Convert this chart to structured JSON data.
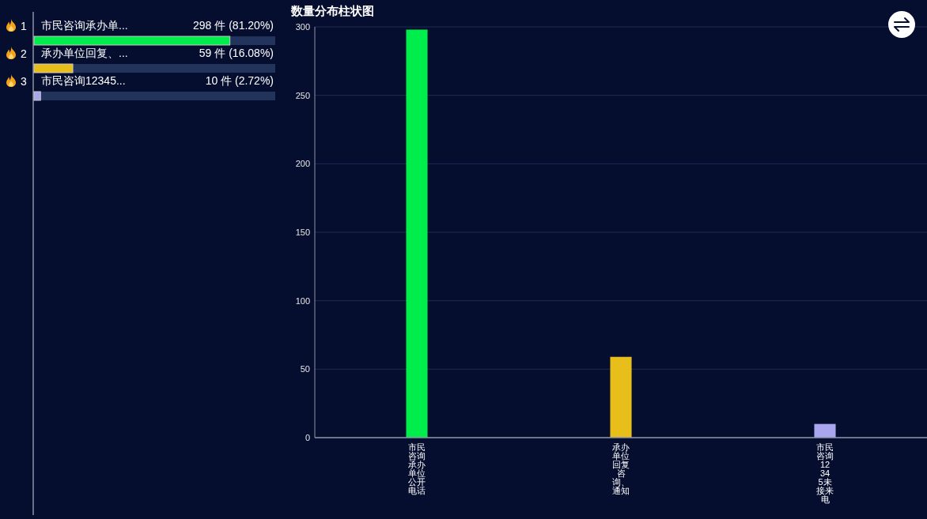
{
  "chart_data": [
    {
      "type": "bar",
      "orientation": "horizontal",
      "categories": [
        "市民咨询承办单...",
        "承办单位回复、...",
        "市民咨询12345..."
      ],
      "values": [
        81.2,
        16.08,
        2.72
      ],
      "colors": [
        "#00ee4c",
        "#e8bf1a",
        "#a9a5ee"
      ],
      "value_labels": [
        "298 件 (81.20%)",
        "59 件 (16.08%)",
        "10 件 (2.72%)"
      ],
      "xlim": [
        0,
        100
      ],
      "bands": [
        {
          "axis": "x",
          "from": 0,
          "to": 100,
          "color": "#22345c"
        },
        {
          "axis": "x",
          "from": 0,
          "to": 100,
          "color": "#22345c"
        },
        {
          "axis": "x",
          "from": 0,
          "to": 100,
          "color": "#22345c"
        }
      ],
      "tick_labels": "y",
      "annotations": [
        "1",
        "2",
        "3"
      ]
    },
    {
      "type": "bar",
      "title": "数量分布柱状图",
      "categories": [
        "市民咨询承办单位公开电话",
        "承办单位回复咨询、通知",
        "市民咨询12345未接来电"
      ],
      "values": [
        298,
        59,
        10
      ],
      "colors": [
        "#00ee4c",
        "#e8bf1a",
        "#a9a5ee"
      ],
      "ylim": [
        0,
        300
      ],
      "yticks": [
        0,
        50,
        100,
        150,
        200,
        250,
        300
      ],
      "grid": "y"
    }
  ]
}
